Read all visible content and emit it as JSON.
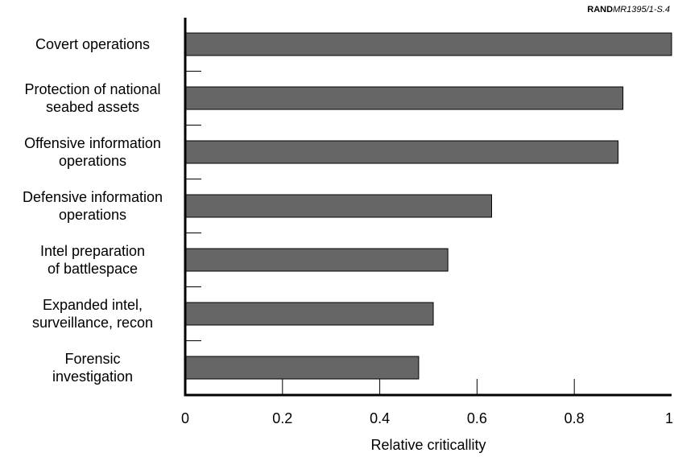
{
  "source": {
    "org": "RAND",
    "code": "MR1395/1-S.4"
  },
  "chart_data": {
    "type": "bar",
    "orientation": "horizontal",
    "categories": [
      [
        "Covert operations"
      ],
      [
        "Protection of national",
        "seabed assets"
      ],
      [
        "Offensive information",
        "operations"
      ],
      [
        "Defensive information",
        "operations"
      ],
      [
        "Intel preparation",
        "of battlespace"
      ],
      [
        "Expanded intel,",
        "surveillance, recon"
      ],
      [
        "Forensic",
        "investigation"
      ]
    ],
    "values": [
      1.0,
      0.9,
      0.89,
      0.63,
      0.54,
      0.51,
      0.48
    ],
    "xlabel": "Relative criticallity",
    "xlim": [
      0,
      1
    ],
    "xticks": [
      0,
      0.2,
      0.4,
      0.6,
      0.8,
      1
    ],
    "xtick_labels": [
      "0",
      "0.2",
      "0.4",
      "0.6",
      "0.8",
      "1"
    ],
    "bar_color": "#666666",
    "grid": false
  }
}
